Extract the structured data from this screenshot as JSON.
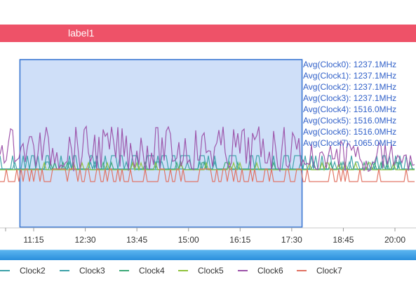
{
  "header": {
    "label": "label1"
  },
  "chart_data": {
    "type": "line",
    "x_ticks": [
      "11:15",
      "12:30",
      "13:45",
      "15:00",
      "16:15",
      "17:30",
      "18:45",
      "20:00"
    ],
    "series": [
      {
        "name": "Clock2",
        "color": "#3aa0a8"
      },
      {
        "name": "Clock3",
        "color": "#3aa0a8"
      },
      {
        "name": "Clock4",
        "color": "#3aa876"
      },
      {
        "name": "Clock5",
        "color": "#8fc23a"
      },
      {
        "name": "Clock6",
        "color": "#9b50a8"
      },
      {
        "name": "Clock7",
        "color": "#e07060"
      }
    ],
    "tooltip": [
      "Avg(Clock0): 1237.1MHz",
      "Avg(Clock1): 1237.1MHz",
      "Avg(Clock2): 1237.1MHz",
      "Avg(Clock3): 1237.1MHz",
      "Avg(Clock4): 1516.0MHz",
      "Avg(Clock5): 1516.0MHz",
      "Avg(Clock6): 1516.0MHz",
      "Avg(Clock7): 1065.0MHz"
    ],
    "selection": {
      "from": "10:55",
      "to": "17:45"
    }
  }
}
